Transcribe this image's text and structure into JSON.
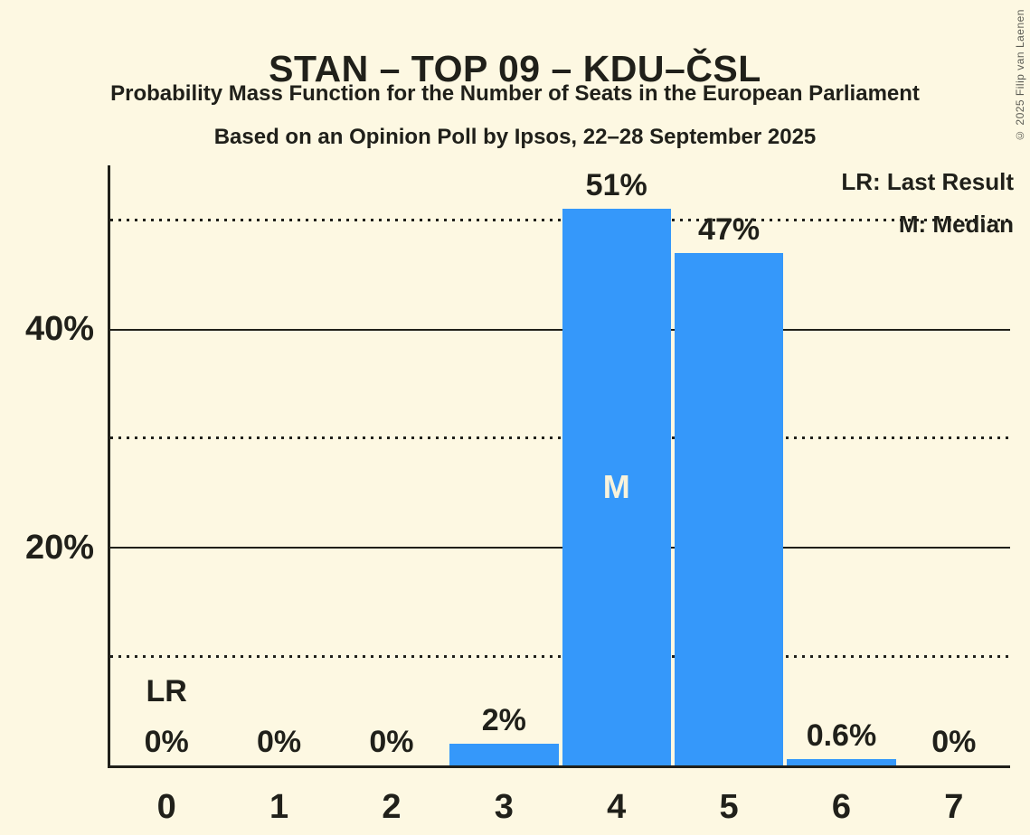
{
  "copyright": "© 2025 Filip van Laenen",
  "chart_data": {
    "type": "bar",
    "title": "STAN – TOP 09 – KDU–ČSL",
    "subtitle": "Probability Mass Function for the Number of Seats in the European Parliament",
    "sub_subtitle": "Based on an Opinion Poll by Ipsos, 22–28 September 2025",
    "categories": [
      "0",
      "1",
      "2",
      "3",
      "4",
      "5",
      "6",
      "7"
    ],
    "values": [
      0,
      0,
      0,
      2,
      51,
      47,
      0.6,
      0
    ],
    "value_labels": [
      "0%",
      "0%",
      "0%",
      "2%",
      "51%",
      "47%",
      "0.6%",
      "0%"
    ],
    "xlabel": "",
    "ylabel": "",
    "ylim": [
      0,
      55
    ],
    "gridlines": [
      {
        "value": 10,
        "style": "dotted",
        "label": ""
      },
      {
        "value": 20,
        "style": "solid",
        "label": "20%"
      },
      {
        "value": 30,
        "style": "dotted",
        "label": ""
      },
      {
        "value": 40,
        "style": "solid",
        "label": "40%"
      },
      {
        "value": 50,
        "style": "dotted",
        "label": ""
      }
    ],
    "legend": {
      "lr": "LR: Last Result",
      "m": "M: Median"
    },
    "legend_position": "top-right",
    "annotations": {
      "median_category": "4",
      "median_label": "M",
      "last_result_category": "0",
      "last_result_label": "LR"
    },
    "colors": {
      "bar": "#3598fa",
      "background": "#fdf8e2",
      "text": "#20201a",
      "median_text": "#f8f3dc",
      "copyright_text": "#5b5b53"
    }
  }
}
